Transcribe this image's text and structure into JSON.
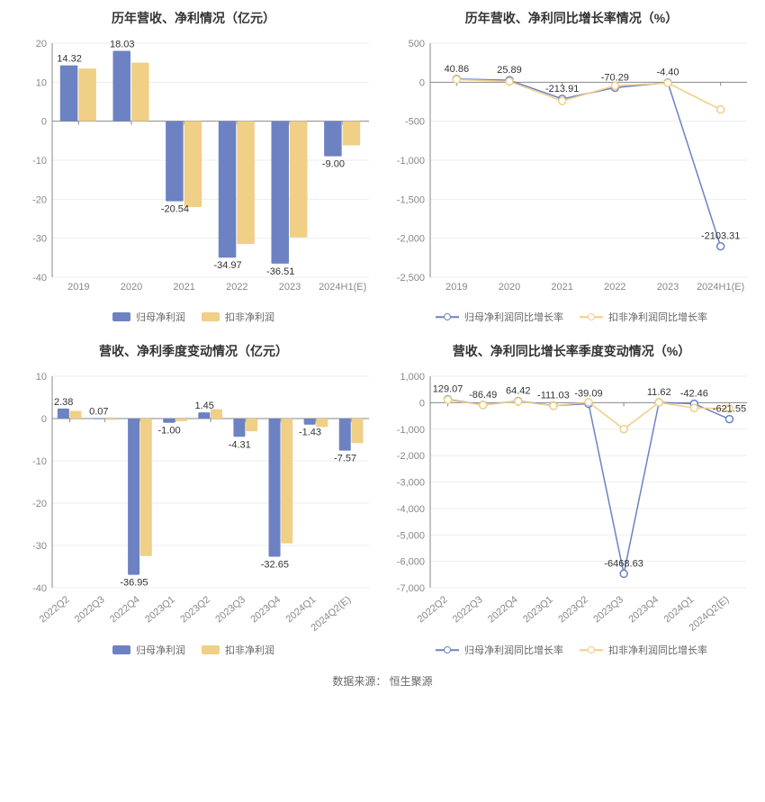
{
  "source_label": "数据来源：",
  "source_value": "恒生聚源",
  "colors": {
    "series_a": "#6d82c2",
    "series_b": "#f0cf87",
    "axis": "#888888",
    "grid": "#eeeeee",
    "text": "#333333",
    "background": "#ffffff"
  },
  "charts": {
    "annual_bar": {
      "type": "bar",
      "title": "历年营收、净利情况（亿元）",
      "categories": [
        "2019",
        "2020",
        "2021",
        "2022",
        "2023",
        "2024H1(E)"
      ],
      "series": [
        {
          "name": "归母净利润",
          "color": "#6d82c2",
          "values": [
            14.32,
            18.03,
            -20.54,
            -34.97,
            -36.51,
            -9.0
          ]
        },
        {
          "name": "扣非净利润",
          "color": "#f0cf87",
          "values": [
            13.5,
            15.0,
            -22.0,
            -31.5,
            -29.8,
            -6.2
          ]
        }
      ],
      "value_labels": [
        14.32,
        18.03,
        -20.54,
        -34.97,
        -36.51,
        -9.0
      ],
      "ylim": [
        -40,
        20
      ],
      "ytick_step": 10,
      "bar_group_width": 0.7,
      "label_fontsize": 11
    },
    "annual_line": {
      "type": "line",
      "title": "历年营收、净利同比增长率情况（%）",
      "categories": [
        "2019",
        "2020",
        "2021",
        "2022",
        "2023",
        "2024H1(E)"
      ],
      "series": [
        {
          "name": "归母净利润同比增长率",
          "color": "#6d82c2",
          "values": [
            40.86,
            25.89,
            -213.91,
            -70.29,
            -4.4,
            -2103.31
          ]
        },
        {
          "name": "扣非净利润同比增长率",
          "color": "#f0cf87",
          "values": [
            35,
            10,
            -240,
            -45,
            -10,
            -350
          ]
        }
      ],
      "value_labels": [
        40.86,
        25.89,
        -213.91,
        -70.29,
        -4.4,
        -2103.31
      ],
      "ylim": [
        -2500,
        500
      ],
      "ytick_step": 500,
      "marker_size": 4,
      "line_width": 1.5,
      "label_fontsize": 11
    },
    "quarterly_bar": {
      "type": "bar",
      "title": "营收、净利季度变动情况（亿元）",
      "categories": [
        "2022Q2",
        "2022Q3",
        "2022Q4",
        "2023Q1",
        "2023Q2",
        "2023Q3",
        "2023Q4",
        "2024Q1",
        "2024Q2(E)"
      ],
      "series": [
        {
          "name": "归母净利润",
          "color": "#6d82c2",
          "values": [
            2.38,
            0.07,
            -36.95,
            -1.0,
            1.45,
            -4.31,
            -32.65,
            -1.43,
            -7.57
          ]
        },
        {
          "name": "扣非净利润",
          "color": "#f0cf87",
          "values": [
            1.8,
            -0.3,
            -32.5,
            -0.6,
            2.2,
            -3.0,
            -29.5,
            -2.0,
            -5.8
          ]
        }
      ],
      "value_labels": [
        2.38,
        0.07,
        -36.95,
        -1.0,
        1.45,
        -4.31,
        -32.65,
        -1.43,
        -7.57
      ],
      "ylim": [
        -40,
        10
      ],
      "ytick_step": 10,
      "bar_group_width": 0.7,
      "rotate_xlabels": -40,
      "label_fontsize": 11
    },
    "quarterly_line": {
      "type": "line",
      "title": "营收、净利同比增长率季度变动情况（%）",
      "categories": [
        "2022Q2",
        "2022Q3",
        "2022Q4",
        "2023Q1",
        "2023Q2",
        "2023Q3",
        "2023Q4",
        "2024Q1",
        "2024Q2(E)"
      ],
      "series": [
        {
          "name": "归母净利润同比增长率",
          "color": "#6d82c2",
          "values": [
            129.07,
            -86.49,
            64.42,
            -111.03,
            -39.09,
            -6468.63,
            11.62,
            -42.46,
            -621.55
          ]
        },
        {
          "name": "扣非净利润同比增长率",
          "color": "#f0cf87",
          "values": [
            110,
            -90,
            50,
            -120,
            20,
            -1000,
            10,
            -200,
            -220
          ]
        }
      ],
      "value_labels": [
        129.07,
        -86.49,
        64.42,
        -111.03,
        -39.09,
        -6468.63,
        11.62,
        -42.46,
        -621.55
      ],
      "ylim": [
        -7000,
        1000
      ],
      "ytick_step": 1000,
      "marker_size": 4,
      "line_width": 1.5,
      "rotate_xlabels": -40,
      "label_fontsize": 11
    }
  }
}
